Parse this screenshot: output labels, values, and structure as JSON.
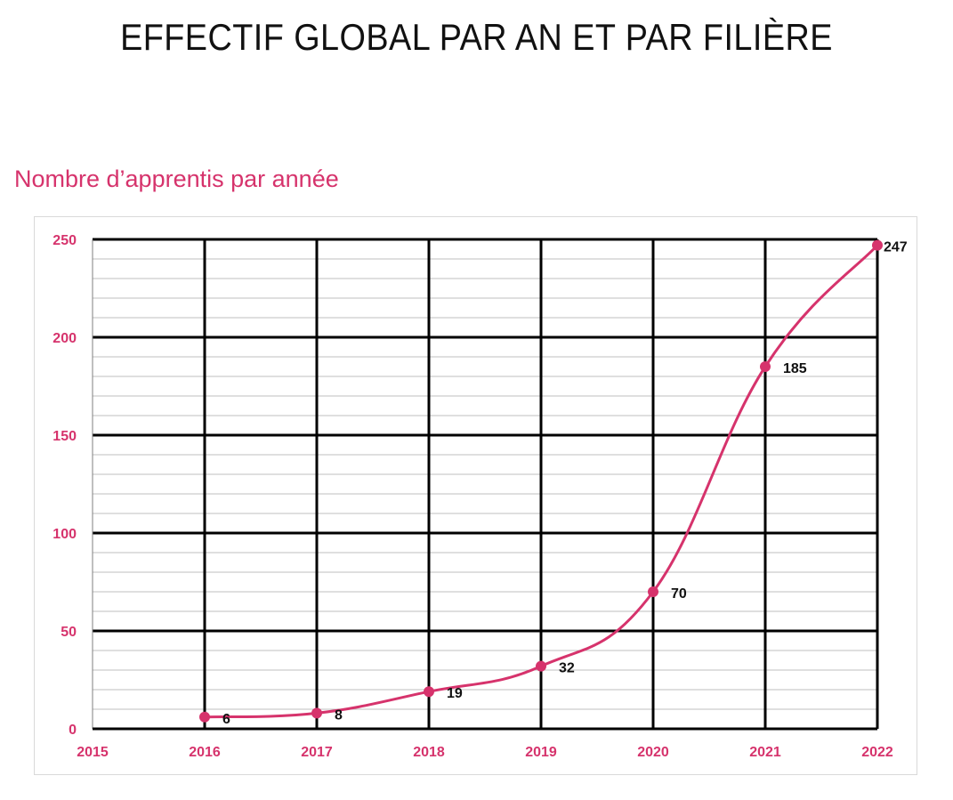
{
  "page": {
    "title": "EFFECTIF GLOBAL PAR AN ET PAR FILIÈRE",
    "subtitle": "Nombre d’apprentis par année"
  },
  "colors": {
    "accent": "#d6336c",
    "gridline_major": "#000000",
    "gridline_minor": "#bfbfbf",
    "label_text": "#111111"
  },
  "chart_data": {
    "type": "line",
    "title": "",
    "xlabel": "",
    "ylabel": "",
    "x": [
      2015,
      2016,
      2017,
      2018,
      2019,
      2020,
      2021,
      2022
    ],
    "x_tick_labels": [
      "2015",
      "2016",
      "2017",
      "2018",
      "2019",
      "2020",
      "2021",
      "2022"
    ],
    "y_tick_labels": [
      "0",
      "50",
      "100",
      "150",
      "200",
      "250"
    ],
    "xlim": [
      2015,
      2022
    ],
    "ylim": [
      0,
      250
    ],
    "y_major_step": 50,
    "y_minor_step": 10,
    "grid": true,
    "smooth": true,
    "series": [
      {
        "name": "",
        "x": [
          2016,
          2017,
          2018,
          2019,
          2020,
          2021,
          2022
        ],
        "values": [
          6,
          8,
          19,
          32,
          70,
          185,
          247
        ],
        "data_labels": [
          "6",
          "8",
          "19",
          "32",
          "70",
          "185",
          "247"
        ]
      }
    ]
  }
}
